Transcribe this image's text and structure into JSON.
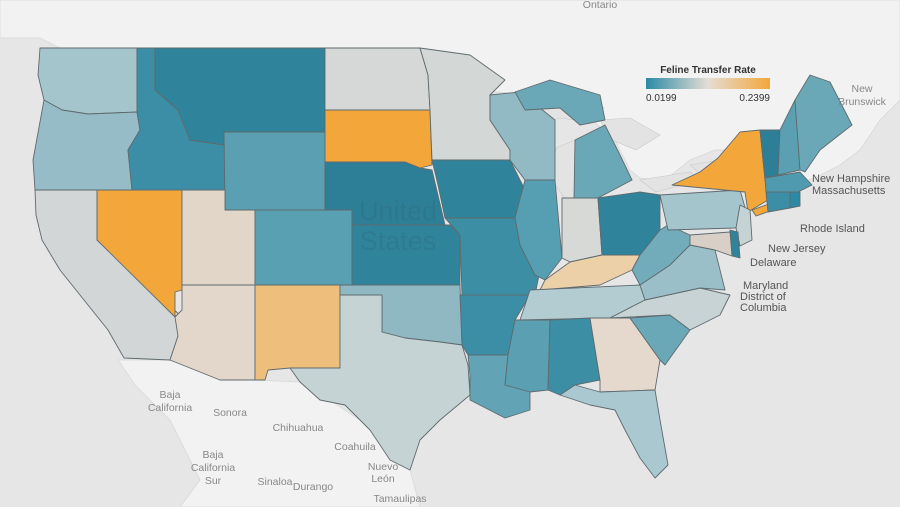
{
  "legend": {
    "title": "Feline Transfer Rate",
    "min_label": "0.0199",
    "max_label": "0.2399",
    "color_low": "#2b8aa6",
    "color_mid": "#e4ddd4",
    "color_high": "#f3a73a"
  },
  "country_label": "United States",
  "country_label_line1": "United",
  "country_label_line2": "States",
  "geo_labels": {
    "ontario": "Ontario",
    "new_brunswick_1": "New",
    "new_brunswick_2": "Brunswick",
    "baja_california_1": "Baja",
    "baja_california_2": "California",
    "baja_california_sur_1": "Baja",
    "baja_california_sur_2": "California",
    "baja_california_sur_3": "Sur",
    "sonora": "Sonora",
    "chihuahua": "Chihuahua",
    "coahuila": "Coahuila",
    "nuevo_leon_1": "Nuevo",
    "nuevo_leon_2": "León",
    "sinaloa": "Sinaloa",
    "durango": "Durango",
    "tamaulipas": "Tamaulipas"
  },
  "callouts": {
    "new_hampshire": "New Hampshire",
    "massachusetts": "Massachusetts",
    "rhode_island": "Rhode Island",
    "new_jersey": "New Jersey",
    "delaware": "Delaware",
    "maryland": "Maryland",
    "dc_1": "District of",
    "dc_2": "Columbia"
  },
  "state_fill_colors": {
    "WA": "#a5c5cd",
    "OR": "#95bcc7",
    "CA": "#d2d6d6",
    "NV": "#f3a73a",
    "ID": "#3b8ea5",
    "MT": "#2f849c",
    "WY": "#5aa0b2",
    "UT": "#e2d6c8",
    "AZ": "#e3d6cb",
    "CO": "#59a0b3",
    "NM": "#eebf7c",
    "ND": "#d5d8d6",
    "SD": "#f3a73a",
    "NE": "#2d7f98",
    "KS": "#2f849c",
    "OK": "#8fb8c2",
    "TX": "#c5d3d5",
    "MN": "#d3d7d6",
    "IA": "#2f849c",
    "MO": "#3c8ea4",
    "AR": "#3b8ea5",
    "LA": "#62a4b6",
    "WI": "#92bac4",
    "IL": "#569eb1",
    "MI": "#6aa8b8",
    "IN": "#d7d9d7",
    "OH": "#2f849c",
    "KY": "#ecd1a8",
    "TN": "#b2ccd1",
    "MS": "#5aa0b2",
    "AL": "#3c8ea4",
    "GA": "#e5d8cc",
    "FL": "#aac8cf",
    "SC": "#6aa8b8",
    "NC": "#c7d3d5",
    "VA": "#9bbfc9",
    "WV": "#72abba",
    "PA": "#a5c5cd",
    "NY": "#f3a73a",
    "ME": "#6aa8b8",
    "VT": "#2d7f98",
    "NH": "#5aa0b2",
    "MA": "#4f9aae",
    "CT": "#3b8ea5",
    "RI": "#2b8aa6",
    "NJ": "#c5d3d5",
    "DE": "#2f849c",
    "MD": "#d8d0c6",
    "LI": "#f3a73a"
  }
}
